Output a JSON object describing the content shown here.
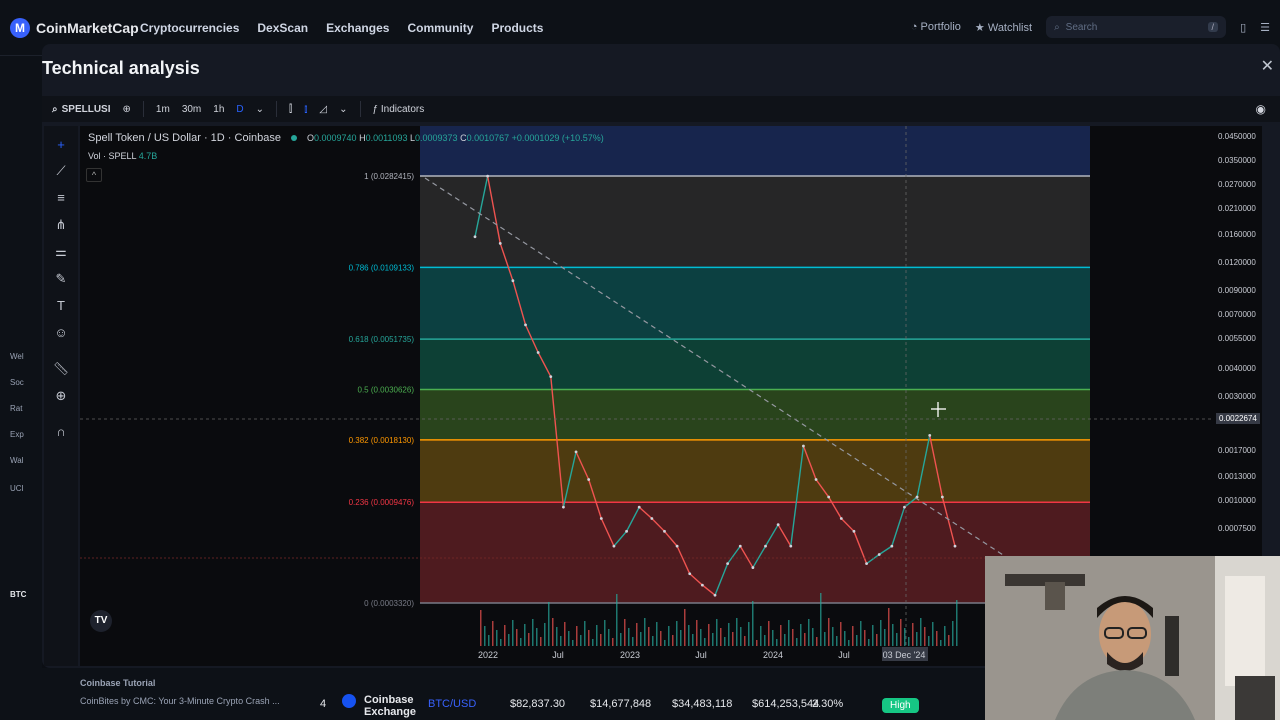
{
  "nav": {
    "logo_text": "CoinMarketCap",
    "links": [
      "Cryptocurrencies",
      "DexScan",
      "Exchanges",
      "Community",
      "Products"
    ],
    "portfolio": "Portfolio",
    "watchlist": "Watchlist",
    "search_placeholder": "Search",
    "search_shortcut": "/"
  },
  "modal": {
    "title": "Technical analysis"
  },
  "toolbar": {
    "symbol": "SPELLUSI",
    "intervals": [
      "1m",
      "30m",
      "1h",
      "D"
    ],
    "active_interval": "D",
    "indicators_label": "Indicators"
  },
  "chart": {
    "title": "Spell Token / US Dollar · 1D · Coinbase",
    "ohlc": {
      "o": "0.0009740",
      "h": "0.0011093",
      "l": "0.0009373",
      "c": "0.0010767",
      "change": "+0.0001029 (+10.57%)"
    },
    "volume_label": "Vol · SPELL",
    "volume_value": "4.7B",
    "fib_levels": [
      {
        "label": "1 (0.0282415)",
        "value": 0.0282415,
        "color": "#b2b5be"
      },
      {
        "label": "0.786 (0.0109133)",
        "value": 0.0109133,
        "color": "#00bcd4"
      },
      {
        "label": "0.618 (0.0051735)",
        "value": 0.0051735,
        "color": "#26a69a"
      },
      {
        "label": "0.5 (0.0030626)",
        "value": 0.0030626,
        "color": "#4caf50"
      },
      {
        "label": "0.382 (0.0018130)",
        "value": 0.001813,
        "color": "#ff9800"
      },
      {
        "label": "0.236 (0.0009476)",
        "value": 0.0009476,
        "color": "#f23645"
      },
      {
        "label": "0 (0.0003320)",
        "value": 0.000332,
        "color": "#787b86"
      }
    ],
    "time_labels": [
      "2022",
      "Jul",
      "2023",
      "Jul",
      "2024",
      "Jul",
      "03 Dec '24"
    ],
    "price_ticks": [
      "0.0450000",
      "0.0350000",
      "0.0270000",
      "0.0210000",
      "0.0160000",
      "0.0120000",
      "0.0090000",
      "0.0070000",
      "0.0055000",
      "0.0040000",
      "0.0030000",
      "0.0017000",
      "0.0013000",
      "0.0010000",
      "0.0007500"
    ],
    "current_price": "0.0022674"
  },
  "chart_data": {
    "type": "line",
    "title": "Spell Token / US Dollar · 1D · Coinbase",
    "xlabel": "",
    "ylabel": "",
    "log_scale": true,
    "x": [
      "2021-11",
      "2021-12",
      "2022-01",
      "2022-02",
      "2022-03",
      "2022-04",
      "2022-05",
      "2022-06",
      "2022-07",
      "2022-08",
      "2022-09",
      "2022-10",
      "2022-11",
      "2022-12",
      "2023-01",
      "2023-02",
      "2023-03",
      "2023-04",
      "2023-05",
      "2023-06",
      "2023-07",
      "2023-08",
      "2023-09",
      "2023-10",
      "2023-11",
      "2023-12",
      "2024-01",
      "2024-02",
      "2024-03",
      "2024-04",
      "2024-05",
      "2024-06",
      "2024-07",
      "2024-08",
      "2024-09",
      "2024-10",
      "2024-11",
      "2024-12",
      "2025-01"
    ],
    "series": [
      {
        "values": [
          0.015,
          0.0282,
          0.014,
          0.0095,
          0.006,
          0.0045,
          0.0035,
          0.0009,
          0.0016,
          0.0012,
          0.0008,
          0.0006,
          0.0007,
          0.0009,
          0.0008,
          0.0007,
          0.0006,
          0.00045,
          0.0004,
          0.00036,
          0.0005,
          0.0006,
          0.00048,
          0.0006,
          0.00075,
          0.0006,
          0.0017,
          0.0012,
          0.001,
          0.0008,
          0.0007,
          0.0005,
          0.00055,
          0.0006,
          0.0009,
          0.001,
          0.0019,
          0.001,
          0.0006
        ]
      }
    ],
    "ylim": [
      0.000332,
      0.045
    ]
  },
  "bottom": {
    "title": "Coinbase Tutorial",
    "caption": "CoinBites by CMC: Your 3-Minute Crypto Crash ...",
    "rank": "4",
    "exchange": "Coinbase Exchange",
    "pair": "BTC/USD",
    "price": "$82,837.30",
    "depth_plus": "$14,677,848",
    "depth_minus": "$34,483,118",
    "volume": "$614,253,544",
    "volume_pct": "2.30%",
    "badge": "High"
  },
  "leftstrip": [
    "Wel",
    "Soc",
    "Rat",
    "Exp",
    "Wal",
    "UCI",
    "BTC"
  ],
  "icons": {
    "close": "close-icon",
    "camera": "camera-icon"
  }
}
